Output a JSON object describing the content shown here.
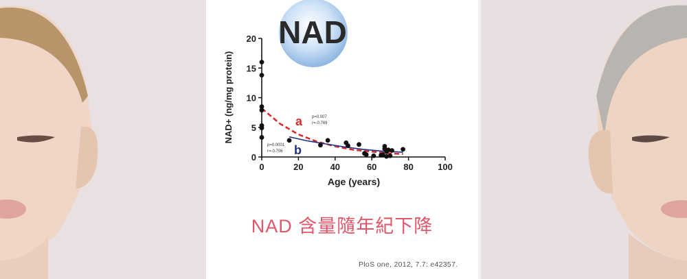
{
  "logo": {
    "text": "NAD"
  },
  "headline": "NAD 含量隨年紀下降",
  "citation": "PloS one, 2012, 7.7: e42357.",
  "colors": {
    "headline": "#e0566a",
    "fit_a": "#d92b2b",
    "fit_b": "#1f2f8a",
    "points": "#111111"
  },
  "annotations": {
    "a_label": "a",
    "a_p": "p=0.007",
    "a_r": "r=-0.769",
    "b_label": "b",
    "b_p": "p=0.0001",
    "b_r": "r=-0.706"
  },
  "chart_data": {
    "type": "scatter",
    "title": "",
    "xlabel": "Age (years)",
    "ylabel": "NAD+ (ng/mg protein)",
    "xlim": [
      0,
      100
    ],
    "ylim": [
      0,
      20
    ],
    "xticks": [
      0,
      20,
      40,
      60,
      80,
      100
    ],
    "yticks": [
      0,
      5,
      10,
      15,
      20
    ],
    "grid": false,
    "points": [
      {
        "x": 0,
        "y": 16.0
      },
      {
        "x": 0,
        "y": 13.8
      },
      {
        "x": 0,
        "y": 8.5
      },
      {
        "x": 0,
        "y": 7.9
      },
      {
        "x": 0,
        "y": 5.3
      },
      {
        "x": 0,
        "y": 4.9
      },
      {
        "x": 0,
        "y": 3.3
      },
      {
        "x": 15,
        "y": 2.8
      },
      {
        "x": 32,
        "y": 2.0
      },
      {
        "x": 36,
        "y": 2.8
      },
      {
        "x": 46,
        "y": 2.4
      },
      {
        "x": 47,
        "y": 1.9
      },
      {
        "x": 53,
        "y": 2.1
      },
      {
        "x": 56,
        "y": 0.6
      },
      {
        "x": 57,
        "y": 0.4
      },
      {
        "x": 61,
        "y": 0.2
      },
      {
        "x": 65,
        "y": 0.3
      },
      {
        "x": 66,
        "y": 0.4
      },
      {
        "x": 67,
        "y": 1.8
      },
      {
        "x": 67,
        "y": 1.4
      },
      {
        "x": 68,
        "y": 0.9
      },
      {
        "x": 68,
        "y": 0.1
      },
      {
        "x": 69,
        "y": 1.2
      },
      {
        "x": 70,
        "y": 0.2
      },
      {
        "x": 71,
        "y": 1.1
      },
      {
        "x": 77,
        "y": 1.3
      }
    ],
    "series": [
      {
        "name": "a",
        "style": "dashed",
        "color": "#d92b2b",
        "p": "0.007",
        "r": "-0.769",
        "x": [
          0,
          10,
          20,
          30,
          40,
          50,
          60,
          70,
          77
        ],
        "values": [
          8.2,
          5.6,
          3.8,
          2.6,
          1.8,
          1.2,
          0.9,
          0.6,
          0.5
        ]
      },
      {
        "name": "b",
        "style": "solid",
        "color": "#1f2f8a",
        "p": "0.0001",
        "r": "-0.706",
        "x": [
          15,
          25,
          35,
          45,
          55,
          65,
          77
        ],
        "values": [
          3.4,
          2.7,
          2.2,
          1.7,
          1.3,
          1.0,
          0.8
        ]
      }
    ],
    "legend": null
  }
}
